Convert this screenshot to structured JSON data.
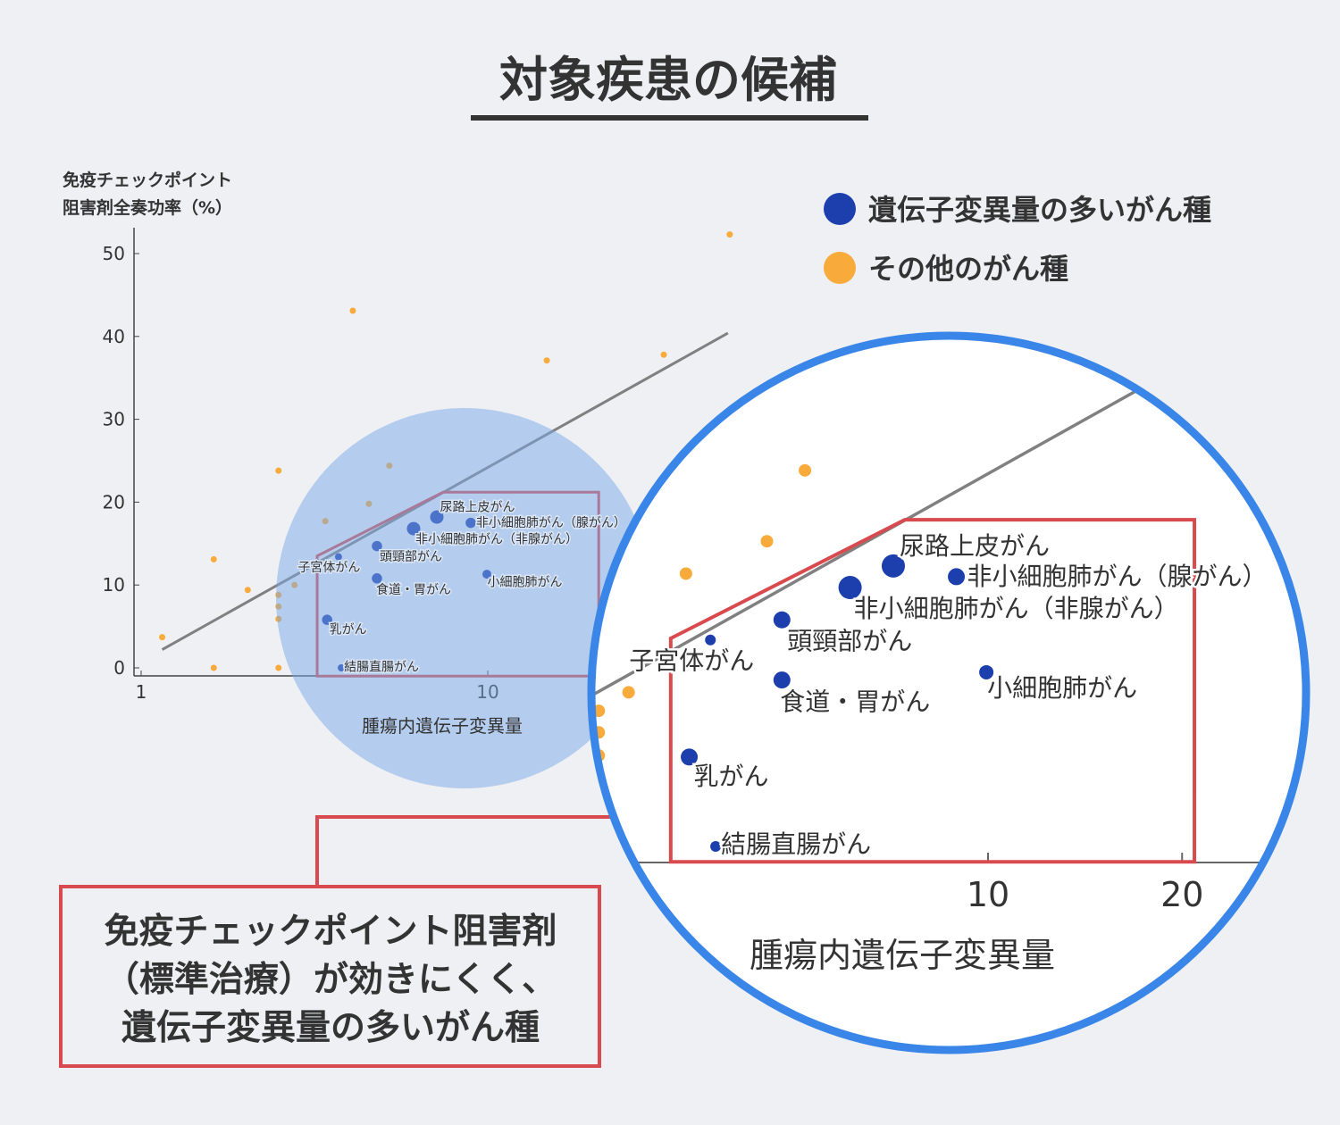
{
  "title": "対象疾患の候補",
  "legend": [
    {
      "label": "遺伝子変異量の多いがん種",
      "color": "#1d3fae"
    },
    {
      "label": "その他のがん種",
      "color": "#f8aa3b"
    }
  ],
  "callout": {
    "lines": [
      "免疫チェックポイント阻害剤",
      "（標準治療）が効きにくく、",
      "遺伝子変異量の多いがん種"
    ],
    "color": "#d94a4f"
  },
  "chart_data": {
    "type": "scatter",
    "ylabel_lines": [
      "免疫チェックポイント",
      "阻害剤全奏功率（%）"
    ],
    "xlabel": "腫瘍内遺伝子変異量",
    "xscale": "log",
    "xlim": [
      1,
      55
    ],
    "ylim": [
      0,
      53
    ],
    "yticks": [
      0,
      10,
      20,
      30,
      40,
      50
    ],
    "xticks": [
      1,
      10
    ],
    "zoom_xticks": [
      10,
      20
    ],
    "grid": false,
    "legend_position": "top-right",
    "trend_line": {
      "x": [
        1.15,
        49.3
      ],
      "y": [
        2.2,
        40.4
      ]
    },
    "highlight_region": {
      "x": [
        3.22,
        3.22,
        7.43,
        20.9,
        20.9
      ],
      "y": [
        -1,
        13.5,
        21.2,
        21.2,
        -1
      ]
    },
    "series": [
      {
        "name": "遺伝子変異量の多いがん種",
        "color": "#1d3fae",
        "points": [
          {
            "label": "尿路上皮がん",
            "x": 7.13,
            "y": 18.2,
            "weight": 3
          },
          {
            "label": "非小細胞肺がん（腺がん）",
            "x": 8.93,
            "y": 17.5,
            "weight": 2
          },
          {
            "label": "非小細胞肺がん（非腺がん）",
            "x": 6.11,
            "y": 16.8,
            "weight": 3
          },
          {
            "label": "頭頸部がん",
            "x": 4.79,
            "y": 14.7,
            "weight": 2
          },
          {
            "label": "子宮体がん",
            "x": 3.71,
            "y": 13.4,
            "weight": 1
          },
          {
            "label": "食道・胃がん",
            "x": 4.79,
            "y": 10.8,
            "weight": 2
          },
          {
            "label": "小細胞肺がん",
            "x": 9.94,
            "y": 11.3,
            "weight": 1.5
          },
          {
            "label": "乳がん",
            "x": 3.44,
            "y": 5.8,
            "weight": 2
          },
          {
            "label": "結腸直腸がん",
            "x": 3.78,
            "y": 0,
            "weight": 1
          }
        ]
      },
      {
        "name": "その他のがん種",
        "color": "#f8aa3b",
        "points": [
          {
            "x": 49.9,
            "y": 52.3
          },
          {
            "x": 4.08,
            "y": 43.1
          },
          {
            "x": 14.8,
            "y": 37.1
          },
          {
            "x": 32.2,
            "y": 37.8
          },
          {
            "x": 2.49,
            "y": 23.8
          },
          {
            "x": 5.2,
            "y": 24.4
          },
          {
            "x": 4.54,
            "y": 19.8
          },
          {
            "x": 3.4,
            "y": 17.7
          },
          {
            "x": 1.62,
            "y": 13.1
          },
          {
            "x": 2.77,
            "y": 10.0
          },
          {
            "x": 2.03,
            "y": 9.4
          },
          {
            "x": 2.49,
            "y": 8.8
          },
          {
            "x": 2.49,
            "y": 7.4
          },
          {
            "x": 2.49,
            "y": 5.9
          },
          {
            "x": 1.15,
            "y": 3.7
          },
          {
            "x": 1.62,
            "y": 0
          },
          {
            "x": 2.49,
            "y": 0
          }
        ]
      }
    ]
  }
}
